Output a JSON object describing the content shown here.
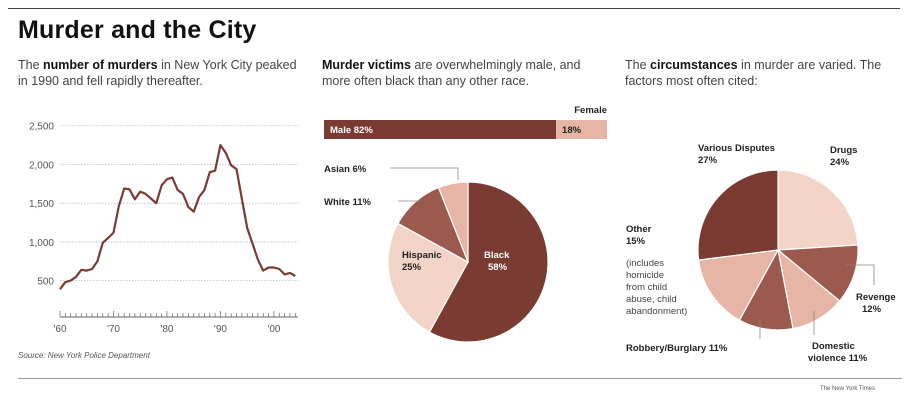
{
  "title": "Murder and the City",
  "intro1": {
    "pre": "The ",
    "bold": "number of murders",
    "post": " in New York City peaked in 1990 and fell rapidly thereafter."
  },
  "intro2": {
    "pre": "",
    "bold": "Murder victims",
    "post": " are overwhelmingly male, and more often black than any other race."
  },
  "intro3": {
    "pre": "The ",
    "bold": "circumstances",
    "post": " in murder are varied. The factors most often cited:"
  },
  "source": "Source: New York Police Department",
  "credit": "The New York Times",
  "colors": {
    "dark": "#7a3b33",
    "mid": "#9c5a4f",
    "light": "#e7b5a5",
    "pale": "#f3d4c6"
  },
  "chart_data": [
    {
      "type": "line",
      "x": [
        1960,
        1961,
        1962,
        1963,
        1964,
        1965,
        1966,
        1967,
        1968,
        1969,
        1970,
        1971,
        1972,
        1973,
        1974,
        1975,
        1976,
        1977,
        1978,
        1979,
        1980,
        1981,
        1982,
        1983,
        1984,
        1985,
        1986,
        1987,
        1988,
        1989,
        1990,
        1991,
        1992,
        1993,
        1994,
        1995,
        1996,
        1997,
        1998,
        1999,
        2000,
        2001,
        2002,
        2003,
        2004
      ],
      "series": [
        {
          "values": [
            390,
            480,
            500,
            550,
            640,
            630,
            650,
            750,
            990,
            1050,
            1120,
            1460,
            1690,
            1680,
            1550,
            1650,
            1620,
            1560,
            1500,
            1730,
            1810,
            1830,
            1670,
            1620,
            1450,
            1390,
            1580,
            1670,
            1900,
            1920,
            2250,
            2150,
            1990,
            1940,
            1560,
            1180,
            980,
            770,
            630,
            670,
            670,
            650,
            580,
            600,
            560
          ]
        }
      ],
      "xticks": [
        "'60",
        "'70",
        "'80",
        "'90",
        "'00"
      ],
      "yticks": [
        "500",
        "1,000",
        "1,500",
        "2,000",
        "2,500"
      ],
      "xlim": [
        1960,
        2004.5
      ],
      "ylim": [
        250,
        2600
      ]
    },
    {
      "type": "bar",
      "stacked": true,
      "categories": [
        "Male",
        "Female"
      ],
      "values": [
        82,
        18
      ],
      "labels": [
        "Male 82%",
        "18%"
      ],
      "header": "Female"
    },
    {
      "type": "pie",
      "slices": [
        {
          "name": "Black",
          "pct": "58%",
          "value": 58,
          "color": "#7a3b33"
        },
        {
          "name": "Hispanic",
          "pct": "25%",
          "value": 25,
          "color": "#f3d4c6"
        },
        {
          "name": "White",
          "pct": "11%",
          "value": 11,
          "color": "#9c5a4f"
        },
        {
          "name": "Asian",
          "pct": "6%",
          "value": 6,
          "color": "#e7b5a5"
        }
      ]
    },
    {
      "type": "pie",
      "slices": [
        {
          "name": "Drugs",
          "pct": "24%",
          "value": 24,
          "color": "#f3d4c6"
        },
        {
          "name": "Revenge",
          "pct": "12%",
          "value": 12,
          "color": "#9c5a4f"
        },
        {
          "name": "Domestic violence",
          "pct": "11%",
          "value": 11,
          "color": "#e7b5a5"
        },
        {
          "name": "Robbery/Burglary",
          "pct": "11%",
          "value": 11,
          "color": "#9c5a4f"
        },
        {
          "name": "Other",
          "pct": "15%",
          "value": 15,
          "color": "#e7b5a5",
          "note": "(includes homicide from child abuse, child abandonment)"
        },
        {
          "name": "Various Disputes",
          "pct": "27%",
          "value": 27,
          "color": "#7a3b33"
        }
      ]
    }
  ]
}
